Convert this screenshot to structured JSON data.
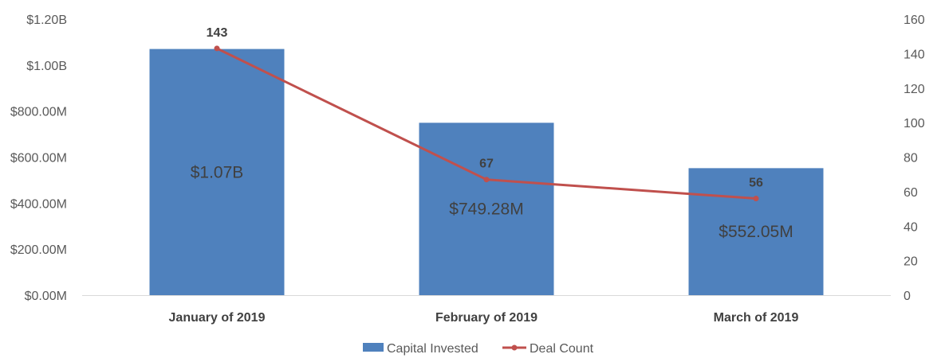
{
  "chart_data": {
    "type": "bar",
    "categories": [
      "January of 2019",
      "February of 2019",
      "March of 2019"
    ],
    "series": [
      {
        "name": "Capital Invested",
        "type": "bar",
        "axis": "left",
        "values": [
          1070000000,
          749280000,
          552050000
        ],
        "labels": [
          "$1.07B",
          "$749.28M",
          "$552.05M"
        ],
        "color": "#4F81BD"
      },
      {
        "name": "Deal Count",
        "type": "line",
        "axis": "right",
        "values": [
          143,
          67,
          56
        ],
        "labels": [
          "143",
          "67",
          "56"
        ],
        "color": "#C0504D"
      }
    ],
    "y_left": {
      "ylim": [
        0,
        1200000000
      ],
      "ticks": [
        0,
        200000000,
        400000000,
        600000000,
        800000000,
        1000000000,
        1200000000
      ],
      "tick_labels": [
        "$0.00M",
        "$200.00M",
        "$400.00M",
        "$600.00M",
        "$800.00M",
        "$1.00B",
        "$1.20B"
      ]
    },
    "y_right": {
      "ylim": [
        0,
        160
      ],
      "ticks": [
        0,
        20,
        40,
        60,
        80,
        100,
        120,
        140,
        160
      ],
      "tick_labels": [
        "0",
        "20",
        "40",
        "60",
        "80",
        "100",
        "120",
        "140",
        "160"
      ]
    },
    "grid": false,
    "legend": "bottom"
  }
}
